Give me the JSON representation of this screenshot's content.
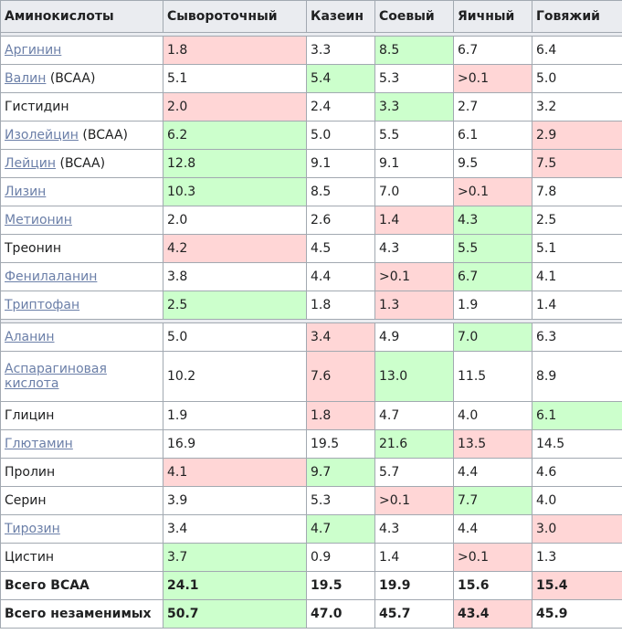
{
  "headers": [
    "Аминокислоты",
    "Сывороточный",
    "Казеин",
    "Соевый",
    "Яичный",
    "Говяжий"
  ],
  "colors": {
    "red": "#ffd6d6",
    "green": "#ccffcc",
    "link": "#6b7fa8",
    "header_bg": "#eaecf0"
  },
  "rows": [
    {
      "name": "Аргинин",
      "suffix": "",
      "link": true,
      "values": [
        "1.8",
        "3.3",
        "8.5",
        "6.7",
        "6.4"
      ],
      "hl": [
        "red",
        "",
        "green",
        "",
        ""
      ]
    },
    {
      "name": "Валин",
      "suffix": " (BCAA)",
      "link": true,
      "values": [
        "5.1",
        "5.4",
        "5.3",
        ">0.1",
        "5.0"
      ],
      "hl": [
        "",
        "green",
        "",
        "red",
        ""
      ]
    },
    {
      "name": "Гистидин",
      "suffix": "",
      "link": false,
      "values": [
        "2.0",
        "2.4",
        "3.3",
        "2.7",
        "3.2"
      ],
      "hl": [
        "red",
        "",
        "green",
        "",
        ""
      ]
    },
    {
      "name": "Изолейцин",
      "suffix": " (BCAA)",
      "link": true,
      "values": [
        "6.2",
        "5.0",
        "5.5",
        "6.1",
        "2.9"
      ],
      "hl": [
        "green",
        "",
        "",
        "",
        "red"
      ]
    },
    {
      "name": "Лейцин",
      "suffix": " (BCAA)",
      "link": true,
      "values": [
        "12.8",
        "9.1",
        "9.1",
        "9.5",
        "7.5"
      ],
      "hl": [
        "green",
        "",
        "",
        "",
        "red"
      ]
    },
    {
      "name": "Лизин",
      "suffix": "",
      "link": true,
      "values": [
        "10.3",
        "8.5",
        "7.0",
        ">0.1",
        "7.8"
      ],
      "hl": [
        "green",
        "",
        "",
        "red",
        ""
      ]
    },
    {
      "name": "Метионин",
      "suffix": "",
      "link": true,
      "values": [
        "2.0",
        "2.6",
        "1.4",
        "4.3",
        "2.5"
      ],
      "hl": [
        "",
        "",
        "red",
        "green",
        ""
      ]
    },
    {
      "name": "Треонин",
      "suffix": "",
      "link": false,
      "values": [
        "4.2",
        "4.5",
        "4.3",
        "5.5",
        "5.1"
      ],
      "hl": [
        "red",
        "",
        "",
        "green",
        ""
      ]
    },
    {
      "name": "Фенилаланин",
      "suffix": "",
      "link": true,
      "values": [
        "3.8",
        "4.4",
        ">0.1",
        "6.7",
        "4.1"
      ],
      "hl": [
        "",
        "",
        "red",
        "green",
        ""
      ]
    },
    {
      "name": "Триптофан",
      "suffix": "",
      "link": true,
      "values": [
        "2.5",
        "1.8",
        "1.3",
        "1.9",
        "1.4"
      ],
      "hl": [
        "green",
        "",
        "red",
        "",
        ""
      ]
    },
    {
      "sep": true
    },
    {
      "name": "Аланин",
      "suffix": "",
      "link": true,
      "values": [
        "5.0",
        "3.4",
        "4.9",
        "7.0",
        "6.3"
      ],
      "hl": [
        "",
        "red",
        "",
        "green",
        ""
      ]
    },
    {
      "name": "Аспарагиновая кислота",
      "suffix": "",
      "link": true,
      "tall": true,
      "values": [
        "10.2",
        "7.6",
        "13.0",
        "11.5",
        "8.9"
      ],
      "hl": [
        "",
        "red",
        "green",
        "",
        ""
      ]
    },
    {
      "name": "Глицин",
      "suffix": "",
      "link": false,
      "values": [
        "1.9",
        "1.8",
        "4.7",
        "4.0",
        "6.1"
      ],
      "hl": [
        "",
        "red",
        "",
        "",
        "green"
      ]
    },
    {
      "name": "Глютамин",
      "suffix": "",
      "link": true,
      "values": [
        "16.9",
        "19.5",
        "21.6",
        "13.5",
        "14.5"
      ],
      "hl": [
        "",
        "",
        "green",
        "red",
        ""
      ]
    },
    {
      "name": "Пролин",
      "suffix": "",
      "link": false,
      "values": [
        "4.1",
        "9.7",
        "5.7",
        "4.4",
        "4.6"
      ],
      "hl": [
        "red",
        "green",
        "",
        "",
        ""
      ]
    },
    {
      "name": "Серин",
      "suffix": "",
      "link": false,
      "values": [
        "3.9",
        "5.3",
        ">0.1",
        "7.7",
        "4.0"
      ],
      "hl": [
        "",
        "",
        "red",
        "green",
        ""
      ]
    },
    {
      "name": "Тирозин",
      "suffix": "",
      "link": true,
      "values": [
        "3.4",
        "4.7",
        "4.3",
        "4.4",
        "3.0"
      ],
      "hl": [
        "",
        "green",
        "",
        "",
        "red"
      ]
    },
    {
      "name": "Цистин",
      "suffix": "",
      "link": false,
      "values": [
        "3.7",
        "0.9",
        "1.4",
        ">0.1",
        "1.3"
      ],
      "hl": [
        "green",
        "",
        "",
        "red",
        ""
      ]
    },
    {
      "name": "Всего BCAA",
      "suffix": "",
      "link": false,
      "total": true,
      "values": [
        "24.1",
        "19.5",
        "19.9",
        "15.6",
        "15.4"
      ],
      "hl": [
        "green",
        "",
        "",
        "",
        "red"
      ]
    },
    {
      "name": "Всего незаменимых",
      "suffix": "",
      "link": false,
      "total": true,
      "values": [
        "50.7",
        "47.0",
        "45.7",
        "43.4",
        "45.9"
      ],
      "hl": [
        "green",
        "",
        "",
        "red",
        ""
      ]
    }
  ]
}
